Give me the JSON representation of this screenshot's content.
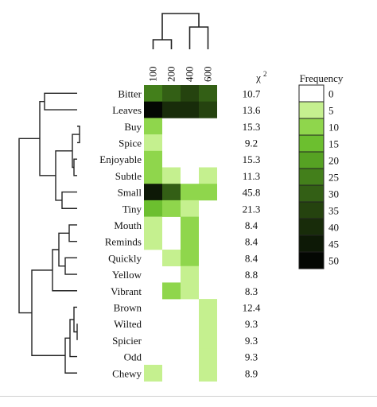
{
  "chart_data": {
    "type": "heatmap",
    "columns": [
      "100",
      "200",
      "400",
      "600"
    ],
    "rows": [
      "Bitter",
      "Leaves",
      "Buy",
      "Spice",
      "Enjoyable",
      "Subtle",
      "Small",
      "Tiny",
      "Mouth",
      "Reminds",
      "Quickly",
      "Yellow",
      "Vibrant",
      "Brown",
      "Wilted",
      "Spicier",
      "Odd",
      "Chewy"
    ],
    "values": [
      [
        24,
        28,
        33,
        31
      ],
      [
        48,
        38,
        40,
        36
      ],
      [
        9,
        0,
        0,
        0
      ],
      [
        6,
        0,
        0,
        0
      ],
      [
        9,
        0,
        0,
        0
      ],
      [
        9,
        2,
        0,
        2
      ],
      [
        43,
        32,
        12,
        10
      ],
      [
        13,
        8,
        4,
        0
      ],
      [
        2,
        0,
        9,
        0
      ],
      [
        2,
        0,
        9,
        0
      ],
      [
        0,
        2,
        9,
        0
      ],
      [
        0,
        0,
        7,
        0
      ],
      [
        0,
        9,
        2,
        0
      ],
      [
        0,
        0,
        0,
        7
      ],
      [
        0,
        0,
        0,
        6
      ],
      [
        0,
        0,
        0,
        6
      ],
      [
        0,
        0,
        0,
        6
      ],
      [
        2,
        0,
        0,
        7
      ]
    ],
    "chi2_label": "χ",
    "chi2_superscript": "2",
    "chi2": [
      "10.7",
      "13.6",
      "15.3",
      "9.2",
      "15.3",
      "11.3",
      "45.8",
      "21.3",
      "8.4",
      "8.4",
      "8.4",
      "8.8",
      "8.3",
      "12.4",
      "9.3",
      "9.3",
      "9.3",
      "8.9"
    ],
    "legend": {
      "title": "Frequency",
      "ticks": [
        "0",
        "5",
        "10",
        "15",
        "20",
        "25",
        "30",
        "35",
        "40",
        "45",
        "50"
      ],
      "colors": [
        "#ffffff",
        "#c5f08f",
        "#8fd64c",
        "#6cbf2f",
        "#56a223",
        "#437f1b",
        "#335f15",
        "#25430f",
        "#182c0a",
        "#0d1906",
        "#040703"
      ],
      "placement": "right"
    },
    "row_dendrogram": true,
    "column_dendrogram": true
  }
}
